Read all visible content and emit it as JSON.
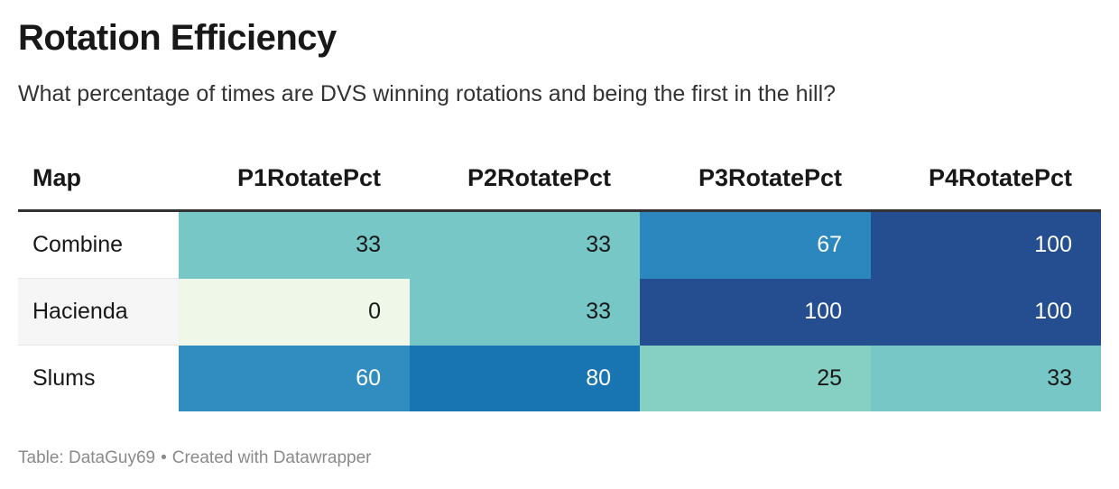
{
  "title": "Rotation Efficiency",
  "subtitle": "What percentage of times are DVS winning rotations and being the first in the hill?",
  "footer": {
    "source": "Table: DataGuy69",
    "separator": "•",
    "credit": "Created with Datawrapper"
  },
  "chart_data": {
    "type": "heatmap",
    "title": "Rotation Efficiency",
    "subtitle": "What percentage of times are DVS winning rotations and being the first in the hill?",
    "columns": [
      "Map",
      "P1RotatePct",
      "P2RotatePct",
      "P3RotatePct",
      "P4RotatePct"
    ],
    "rows": [
      {
        "map": "Combine",
        "values": [
          33,
          33,
          67,
          100
        ]
      },
      {
        "map": "Hacienda",
        "values": [
          0,
          33,
          100,
          100
        ]
      },
      {
        "map": "Slums",
        "values": [
          60,
          80,
          25,
          33
        ]
      }
    ],
    "color_scale": {
      "domain": [
        0,
        100
      ],
      "colors": [
        "#eff8e8",
        "#96d6c0",
        "#76c7c6",
        "#3b96c4",
        "#2b87bd",
        "#146faf",
        "#244e8f"
      ]
    },
    "light_text_color": "#ffffff",
    "dark_text_color": "#181818"
  }
}
